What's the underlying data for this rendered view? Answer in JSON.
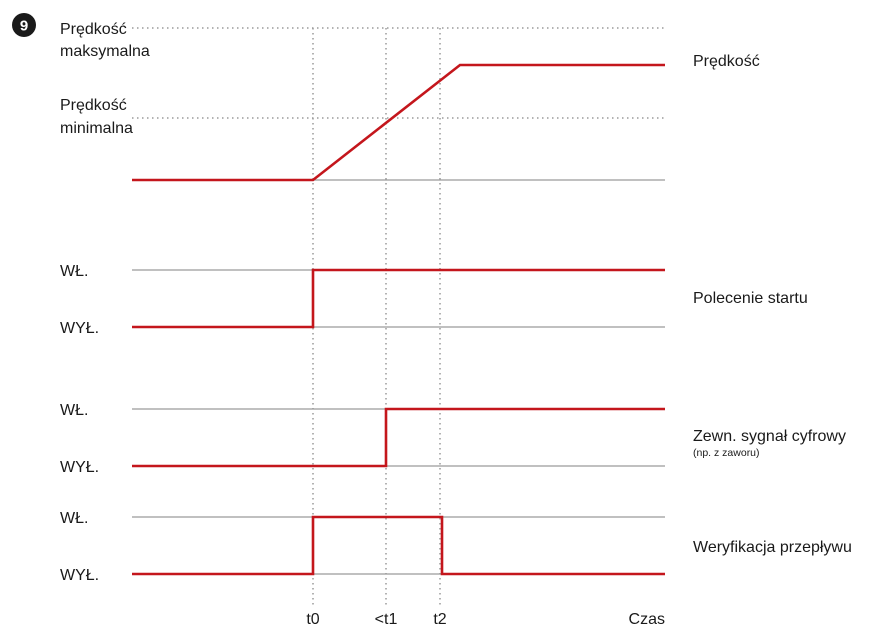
{
  "figure_number": "9",
  "speed_panel": {
    "max_label_line1": "Prędkość",
    "max_label_line2": "maksymalna",
    "min_label_line1": "Prędkość",
    "min_label_line2": "minimalna",
    "signal_name": "Prędkość"
  },
  "start_panel": {
    "on_label": "WŁ.",
    "off_label": "WYŁ.",
    "signal_name": "Polecenie startu"
  },
  "digital_panel": {
    "on_label": "WŁ.",
    "off_label": "WYŁ.",
    "signal_name": "Zewn. sygnał cyfrowy",
    "signal_note": "(np. z zaworu)"
  },
  "flow_panel": {
    "on_label": "WŁ.",
    "off_label": "WYŁ.",
    "signal_name": "Weryfikacja przepływu"
  },
  "time_axis": {
    "t0": "t0",
    "t1": "<t1",
    "t2": "t2",
    "axis_label": "Czas"
  },
  "colors": {
    "signal": "#c4161c",
    "grid": "#9a9a9a",
    "badge": "#1a1a1a"
  }
}
